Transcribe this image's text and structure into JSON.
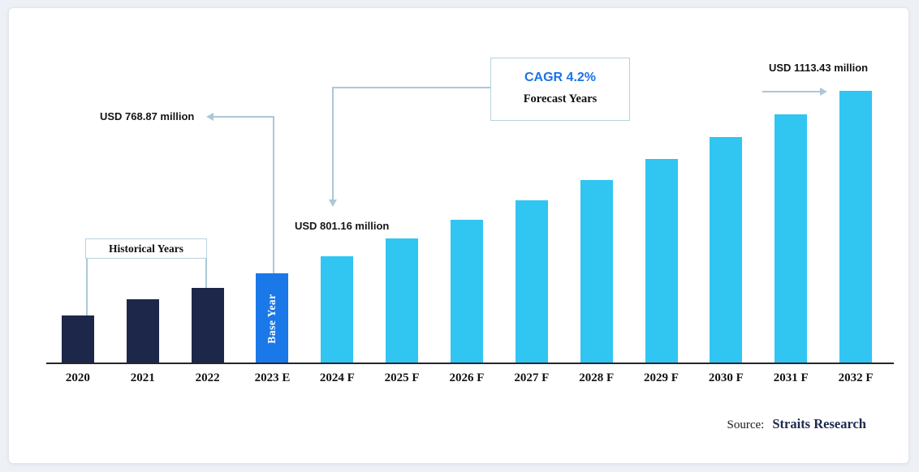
{
  "chart_data": {
    "type": "bar",
    "title": "",
    "xlabel": "",
    "ylabel": "",
    "unit": "USD million",
    "categories": [
      "2020",
      "2021",
      "2022",
      "2023 E",
      "2024 F",
      "2025 F",
      "2026 F",
      "2027 F",
      "2028 F",
      "2029 F",
      "2030 F",
      "2031 F",
      "2032 F"
    ],
    "values": [
      690,
      720,
      742,
      768.87,
      801.16,
      834.8,
      869.9,
      906.4,
      944.5,
      984.2,
      1025.5,
      1068.6,
      1113.43
    ],
    "bar_types": [
      "historical",
      "historical",
      "historical",
      "base",
      "forecast",
      "forecast",
      "forecast",
      "forecast",
      "forecast",
      "forecast",
      "forecast",
      "forecast",
      "forecast"
    ],
    "cagr": "4.2%",
    "segments": [
      "Historical Years",
      "Base Year",
      "Forecast Years"
    ],
    "annotations": [
      {
        "target": "2023 E",
        "text": "USD 768.87 million"
      },
      {
        "target": "2024 F",
        "text": "USD 801.16 million"
      },
      {
        "target": "2032 F",
        "text": "USD 1113.43 million"
      }
    ],
    "grid": false,
    "legend_position": "none"
  },
  "annotations": {
    "historical_label": "Historical Years",
    "base_year_label": "Base Year",
    "cagr_value": "CAGR 4.2%",
    "forecast_label": "Forecast Years",
    "value_2023": "USD 768.87 million",
    "value_2024": "USD 801.16 million",
    "value_2032": "USD 1113.43 million"
  },
  "source": {
    "label": "Source:",
    "name": "Straits Research"
  },
  "colors": {
    "historical": "#1c2749",
    "base": "#1a78e8",
    "forecast": "#31c5f1",
    "accent_blue": "#1a73e8",
    "connector": "#aac9d6",
    "axis": "#26262e",
    "page_background": "#edf0f4",
    "card_background": "#ffffff"
  }
}
